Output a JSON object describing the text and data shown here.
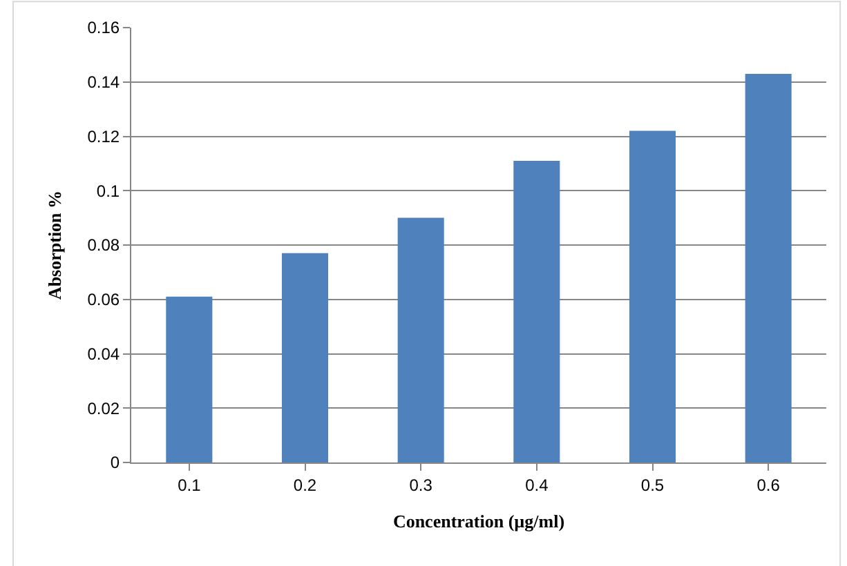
{
  "chart_data": {
    "type": "bar",
    "xlabel": "Concentration (µg/ml)",
    "ylabel": "Absorption %",
    "categories": [
      "0.1",
      "0.2",
      "0.3",
      "0.4",
      "0.5",
      "0.6"
    ],
    "values": [
      0.061,
      0.077,
      0.09,
      0.111,
      0.122,
      0.143
    ],
    "color": "#4f81bd",
    "ylim": [
      0,
      0.16
    ],
    "yticks": [
      0,
      0.02,
      0.04,
      0.06,
      0.08,
      0.1,
      0.12,
      0.14,
      0.16
    ],
    "grid": "y"
  }
}
